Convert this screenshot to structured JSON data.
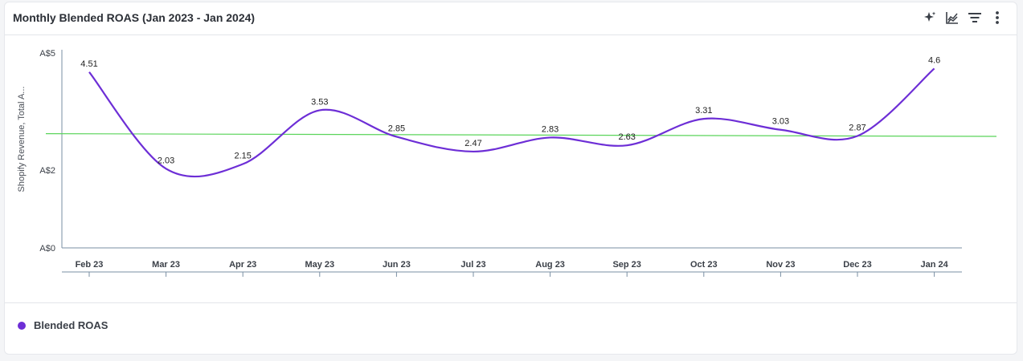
{
  "header": {
    "title": "Monthly Blended ROAS (Jan 2023 - Jan 2024)",
    "tools": [
      {
        "name": "sparkle-icon"
      },
      {
        "name": "chart-type-icon"
      },
      {
        "name": "filter-lines-icon"
      },
      {
        "name": "more-vertical-icon"
      }
    ]
  },
  "colors": {
    "series": "#6d2ed6",
    "reference": "#5ad45a",
    "axis": "#7a8fa3"
  },
  "chart_data": {
    "type": "line",
    "title": "Monthly Blended ROAS (Jan 2023 - Jan 2024)",
    "ylabel": "Shopify Revenue, Total A...",
    "xlabel": "",
    "ylim": [
      0,
      5
    ],
    "yticks": [
      {
        "value": 0,
        "label": "A$0"
      },
      {
        "value": 2,
        "label": "A$2"
      },
      {
        "value": 5,
        "label": "A$5"
      }
    ],
    "categories": [
      "Feb 23",
      "Mar 23",
      "Apr 23",
      "May 23",
      "Jun 23",
      "Jul 23",
      "Aug 23",
      "Sep 23",
      "Oct 23",
      "Nov 23",
      "Dec 23",
      "Jan 24"
    ],
    "series": [
      {
        "name": "Blended ROAS",
        "values": [
          4.51,
          2.03,
          2.15,
          3.53,
          2.85,
          2.47,
          2.83,
          2.63,
          3.31,
          3.03,
          2.87,
          4.6
        ],
        "labels": [
          "4.51",
          "2.03",
          "2.15",
          "3.53",
          "2.85",
          "2.47",
          "2.83",
          "2.63",
          "3.31",
          "3.03",
          "2.87",
          "4.6"
        ]
      }
    ],
    "reference_line": {
      "start": 2.93,
      "end": 2.86
    },
    "legend": "bottom-left",
    "grid": false
  }
}
